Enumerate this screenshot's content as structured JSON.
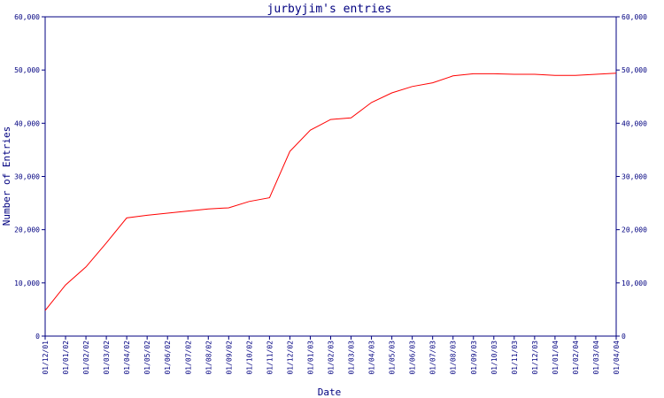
{
  "chart_data": {
    "type": "line",
    "title": "jurbyjim's entries",
    "xlabel": "Date",
    "ylabel": "Number of Entries",
    "ylim": [
      0,
      60000
    ],
    "y_ticks": [
      0,
      10000,
      20000,
      30000,
      40000,
      50000,
      60000
    ],
    "y_tick_labels": [
      "0",
      "10,000",
      "20,000",
      "30,000",
      "40,000",
      "50,000",
      "60,000"
    ],
    "x_tick_labels": [
      "01/12/01",
      "01/01/02",
      "01/02/02",
      "01/03/02",
      "01/04/02",
      "01/05/02",
      "01/06/02",
      "01/07/02",
      "01/08/02",
      "01/09/02",
      "01/10/02",
      "01/11/02",
      "01/12/02",
      "01/01/03",
      "01/02/03",
      "01/03/03",
      "01/04/03",
      "01/05/03",
      "01/06/03",
      "01/07/03",
      "01/08/03",
      "01/09/03",
      "01/10/03",
      "01/11/03",
      "01/12/03",
      "01/01/04",
      "01/02/04",
      "01/03/04",
      "01/04/04"
    ],
    "grid": false,
    "line_color": "#ff0000",
    "axis_color": "#000080",
    "series": [
      {
        "x": [
          "01/12/01",
          "01/01/02",
          "01/02/02",
          "01/03/02",
          "01/04/02",
          "01/05/02",
          "01/06/02",
          "01/07/02",
          "01/08/02",
          "01/09/02",
          "01/10/02",
          "01/11/02",
          "01/12/02",
          "01/01/03",
          "01/02/03",
          "01/03/03",
          "01/04/03",
          "01/05/03",
          "01/06/03",
          "01/07/03",
          "01/08/03",
          "01/09/03",
          "01/10/03",
          "01/11/03",
          "01/12/03",
          "01/01/04",
          "01/02/04",
          "01/03/04",
          "01/04/04"
        ],
        "values": [
          4800,
          9600,
          13000,
          17500,
          22200,
          22700,
          23100,
          23500,
          23900,
          24100,
          25300,
          26000,
          34700,
          38700,
          40700,
          41000,
          43900,
          45700,
          46900,
          47600,
          48900,
          49300,
          49300,
          49200,
          49200,
          49000,
          49000,
          49200,
          49400
        ]
      }
    ]
  }
}
